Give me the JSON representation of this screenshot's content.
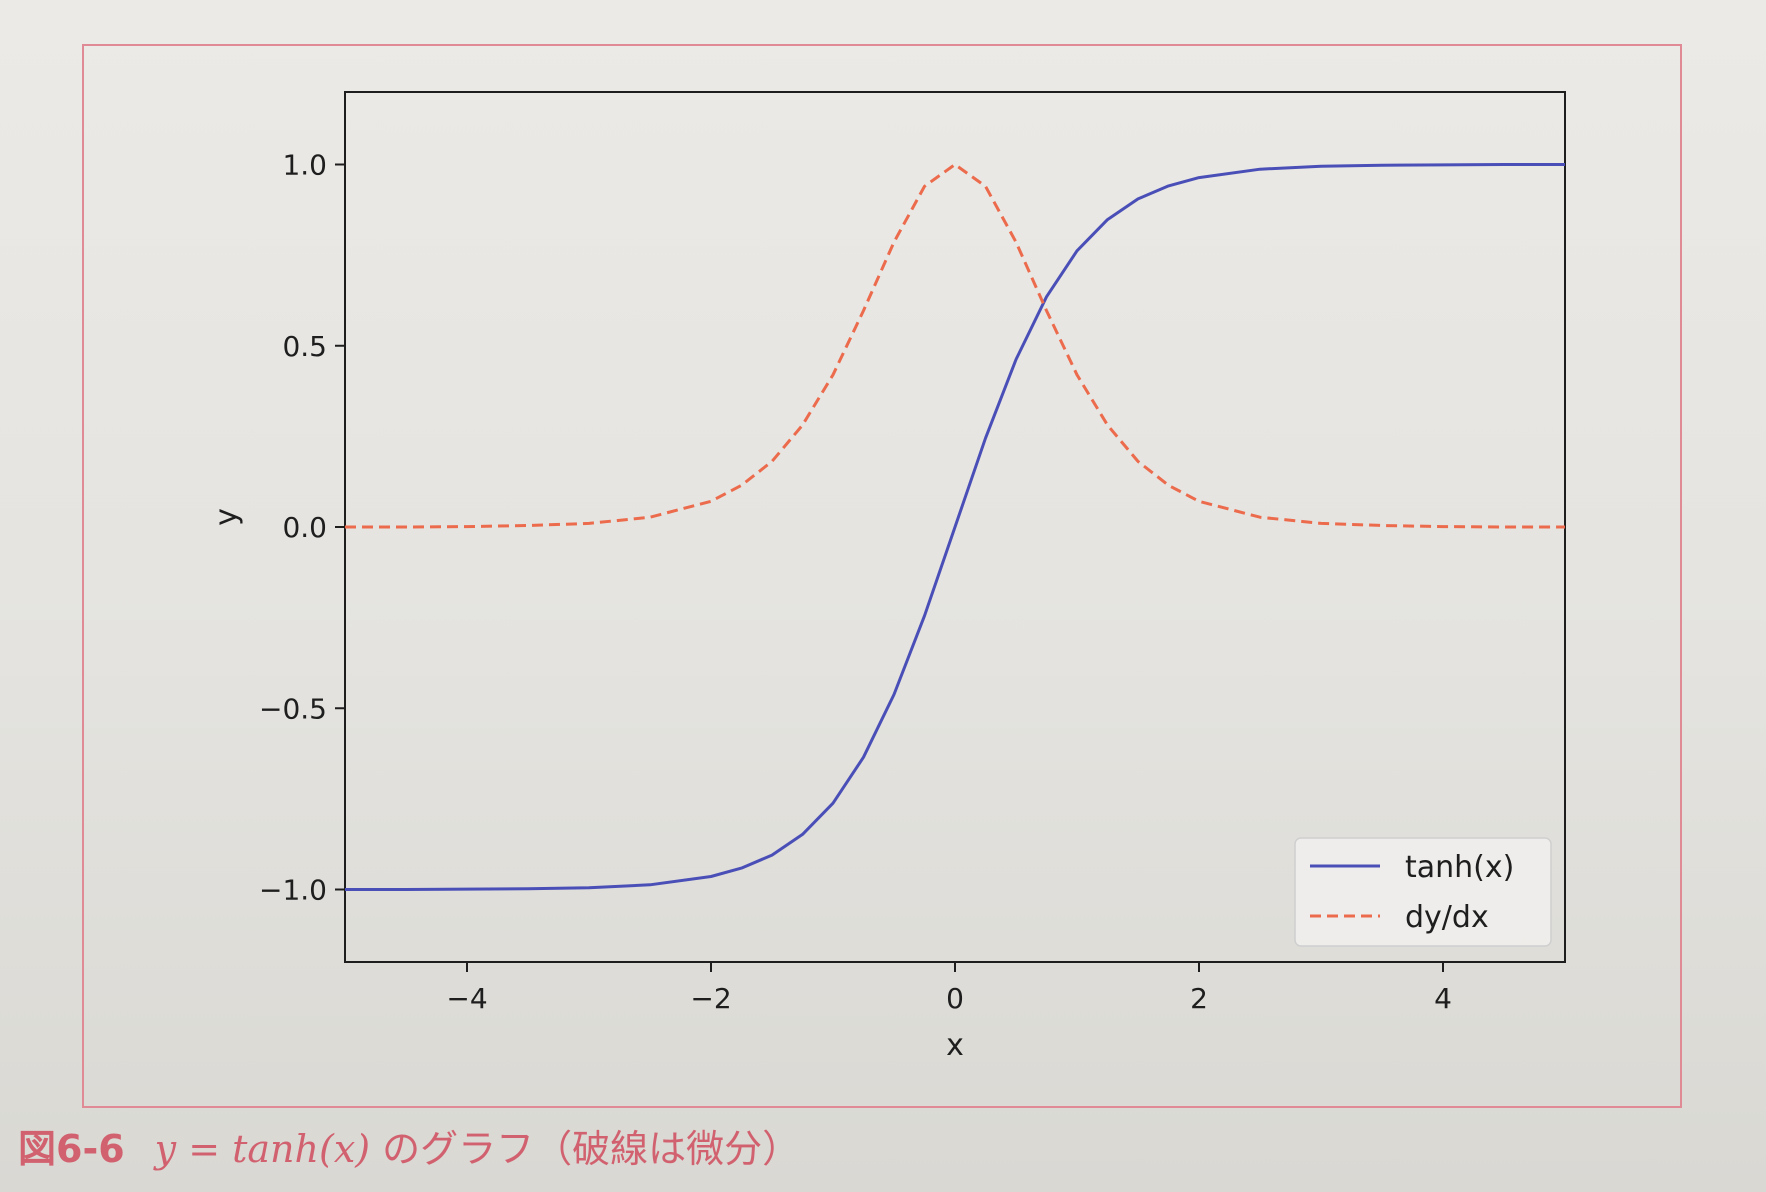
{
  "caption": {
    "number": "図6-6",
    "formula": "y = tanh(x)",
    "text": "のグラフ（破線は微分）"
  },
  "colors": {
    "tanh": "#4a4fb8",
    "derivative": "#ec6b4d",
    "frame": "#e08a96",
    "caption": "#d2616f"
  },
  "chart_data": {
    "type": "line",
    "title": "",
    "xlabel": "x",
    "ylabel": "y",
    "xlim": [
      -5,
      5
    ],
    "ylim": [
      -1.2,
      1.2
    ],
    "xticks": [
      -4,
      -2,
      0,
      2,
      4
    ],
    "xtick_labels": [
      "−4",
      "−2",
      "0",
      "2",
      "4"
    ],
    "yticks": [
      -1.0,
      -0.5,
      0.0,
      0.5,
      1.0
    ],
    "ytick_labels": [
      "−1.0",
      "−0.5",
      "0.0",
      "0.5",
      "1.0"
    ],
    "x": [
      -5,
      -4.5,
      -4,
      -3.5,
      -3,
      -2.5,
      -2,
      -1.75,
      -1.5,
      -1.25,
      -1,
      -0.75,
      -0.5,
      -0.25,
      0,
      0.25,
      0.5,
      0.75,
      1,
      1.25,
      1.5,
      1.75,
      2,
      2.5,
      3,
      3.5,
      4,
      4.5,
      5
    ],
    "series": [
      {
        "name": "tanh(x)",
        "style": "solid",
        "values": [
          -1.0,
          -1.0,
          -0.999,
          -0.998,
          -0.995,
          -0.987,
          -0.964,
          -0.941,
          -0.905,
          -0.848,
          -0.762,
          -0.635,
          -0.462,
          -0.245,
          0.0,
          0.245,
          0.462,
          0.635,
          0.762,
          0.848,
          0.905,
          0.941,
          0.964,
          0.987,
          0.995,
          0.998,
          0.999,
          1.0,
          1.0
        ]
      },
      {
        "name": "dy/dx",
        "style": "dashed",
        "values": [
          0.0,
          0.0,
          0.001,
          0.004,
          0.01,
          0.027,
          0.071,
          0.115,
          0.181,
          0.281,
          0.42,
          0.597,
          0.786,
          0.94,
          1.0,
          0.94,
          0.786,
          0.597,
          0.42,
          0.281,
          0.181,
          0.115,
          0.071,
          0.027,
          0.01,
          0.004,
          0.001,
          0.0,
          0.0
        ]
      }
    ],
    "grid": false,
    "legend": "bottom-right"
  }
}
